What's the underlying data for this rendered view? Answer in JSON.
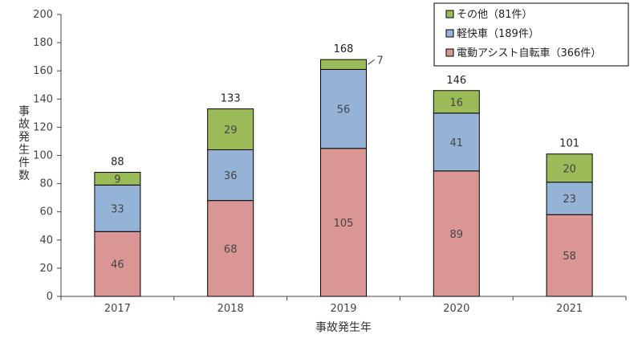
{
  "chart_data": {
    "type": "bar",
    "stacked": true,
    "categories": [
      "2017",
      "2018",
      "2019",
      "2020",
      "2021"
    ],
    "series": [
      {
        "name": "電動アシスト自転車（366件）",
        "values": [
          46,
          68,
          105,
          89,
          58
        ],
        "color": "#d99694"
      },
      {
        "name": "軽快車（189件）",
        "values": [
          33,
          36,
          56,
          41,
          23
        ],
        "color": "#95b3d7"
      },
      {
        "name": "その他（81件）",
        "values": [
          9,
          29,
          7,
          16,
          20
        ],
        "color": "#9bbb59"
      }
    ],
    "totals": [
      88,
      133,
      168,
      146,
      101
    ],
    "xlabel": "事故発生年",
    "ylabel": "事故発生件数",
    "ylim": [
      0,
      200
    ],
    "yticks": [
      0,
      20,
      40,
      60,
      80,
      100,
      120,
      140,
      160,
      180,
      200
    ],
    "legend_position": "top-right",
    "grid": false
  }
}
